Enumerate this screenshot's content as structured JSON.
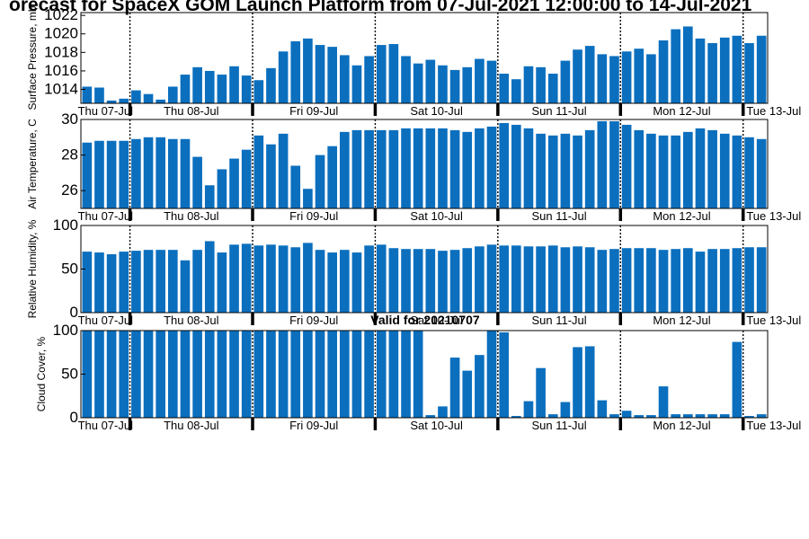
{
  "figure": {
    "title": "orecast for SpaceX GOM Launch Platform from 07-Jul-2021 12:00:00 to 14-Jul-2021",
    "subtitle": "Valid for 20210707"
  },
  "colors": {
    "bar": "#0b6fbe",
    "axis": "#000000",
    "background": "#ffffff"
  },
  "chart_data": [
    {
      "type": "bar",
      "ylabel": "Surface Pressure, mb",
      "ylim": [
        1012.5,
        1022.3
      ],
      "yticks": [
        1014,
        1016,
        1018,
        1020,
        1022
      ],
      "day_labels": [
        "Thu 07-Jul",
        "Thu 08-Jul",
        "Fri 09-Jul",
        "Sat 10-Jul",
        "Sun 11-Jul",
        "Mon 12-Jul",
        "Tue 13-Jul"
      ],
      "values": [
        1014.3,
        1014.2,
        1012.8,
        1013.0,
        1013.9,
        1013.5,
        1012.9,
        1014.3,
        1015.6,
        1016.4,
        1016.0,
        1015.6,
        1016.5,
        1015.5,
        1015.0,
        1016.3,
        1018.1,
        1019.2,
        1019.5,
        1018.8,
        1018.6,
        1017.7,
        1016.6,
        1017.6,
        1018.8,
        1018.9,
        1017.6,
        1016.8,
        1017.2,
        1016.6,
        1016.1,
        1016.4,
        1017.3,
        1017.1,
        1015.7,
        1015.1,
        1016.5,
        1016.4,
        1015.7,
        1017.1,
        1018.3,
        1018.7,
        1017.8,
        1017.6,
        1018.1,
        1018.4,
        1017.8,
        1019.3,
        1020.5,
        1020.8,
        1019.5,
        1019.0,
        1019.6,
        1019.8,
        1019.0,
        1019.8
      ]
    },
    {
      "type": "bar",
      "ylabel": "Air Temperature, C",
      "ylim": [
        25.0,
        30.0
      ],
      "yticks": [
        26,
        28,
        30
      ],
      "day_labels": [
        "Thu 07-Jul",
        "Thu 08-Jul",
        "Fri 09-Jul",
        "Sat 10-Jul",
        "Sun 11-Jul",
        "Mon 12-Jul",
        "Tue 13-Jul"
      ],
      "values": [
        28.7,
        28.8,
        28.8,
        28.8,
        28.9,
        29.0,
        29.0,
        28.9,
        28.9,
        27.9,
        26.3,
        27.2,
        27.8,
        28.3,
        29.1,
        28.6,
        29.2,
        27.4,
        26.1,
        28.0,
        28.5,
        29.3,
        29.4,
        29.4,
        29.4,
        29.4,
        29.5,
        29.5,
        29.5,
        29.5,
        29.4,
        29.3,
        29.5,
        29.6,
        29.8,
        29.7,
        29.5,
        29.2,
        29.1,
        29.2,
        29.1,
        29.4,
        29.9,
        29.9,
        29.7,
        29.4,
        29.2,
        29.1,
        29.1,
        29.3,
        29.5,
        29.4,
        29.2,
        29.1,
        29.0,
        28.9
      ]
    },
    {
      "type": "bar",
      "ylabel": "Relative Humidity, %",
      "ylim": [
        0,
        100
      ],
      "yticks": [
        0,
        50,
        100
      ],
      "day_labels": [
        "Thu 07-Jul",
        "Thu 08-Jul",
        "Fri 09-Jul",
        "Sat 10-Jul",
        "Sun 11-Jul",
        "Mon 12-Jul",
        "Tue 13-Jul"
      ],
      "values": [
        70,
        69,
        67,
        70,
        71,
        72,
        72,
        72,
        60,
        72,
        82,
        69,
        78,
        79,
        77,
        78,
        77,
        75,
        80,
        72,
        69,
        72,
        69,
        77,
        78,
        74,
        73,
        73,
        73,
        71,
        72,
        74,
        76,
        78,
        77,
        77,
        76,
        76,
        77,
        75,
        76,
        75,
        72,
        73,
        74,
        74,
        74,
        72,
        73,
        74,
        70,
        73,
        73,
        74,
        75,
        75
      ]
    },
    {
      "type": "bar",
      "ylabel": "Cloud Cover, %",
      "ylim": [
        0,
        100
      ],
      "yticks": [
        0,
        50,
        100
      ],
      "day_labels": [
        "Thu 07-Jul",
        "Thu 08-Jul",
        "Fri 09-Jul",
        "Sat 10-Jul",
        "Sun 11-Jul",
        "Mon 12-Jul",
        "Tue 13-Jul"
      ],
      "values": [
        100,
        100,
        100,
        100,
        100,
        100,
        100,
        100,
        100,
        100,
        100,
        100,
        100,
        100,
        100,
        100,
        100,
        100,
        100,
        100,
        100,
        100,
        100,
        100,
        100,
        100,
        100,
        100,
        3,
        13,
        69,
        54,
        72,
        100,
        98,
        2,
        19,
        57,
        4,
        18,
        81,
        82,
        20,
        4,
        8,
        3,
        3,
        36,
        4,
        4,
        4,
        4,
        4,
        87,
        2,
        4
      ]
    }
  ]
}
